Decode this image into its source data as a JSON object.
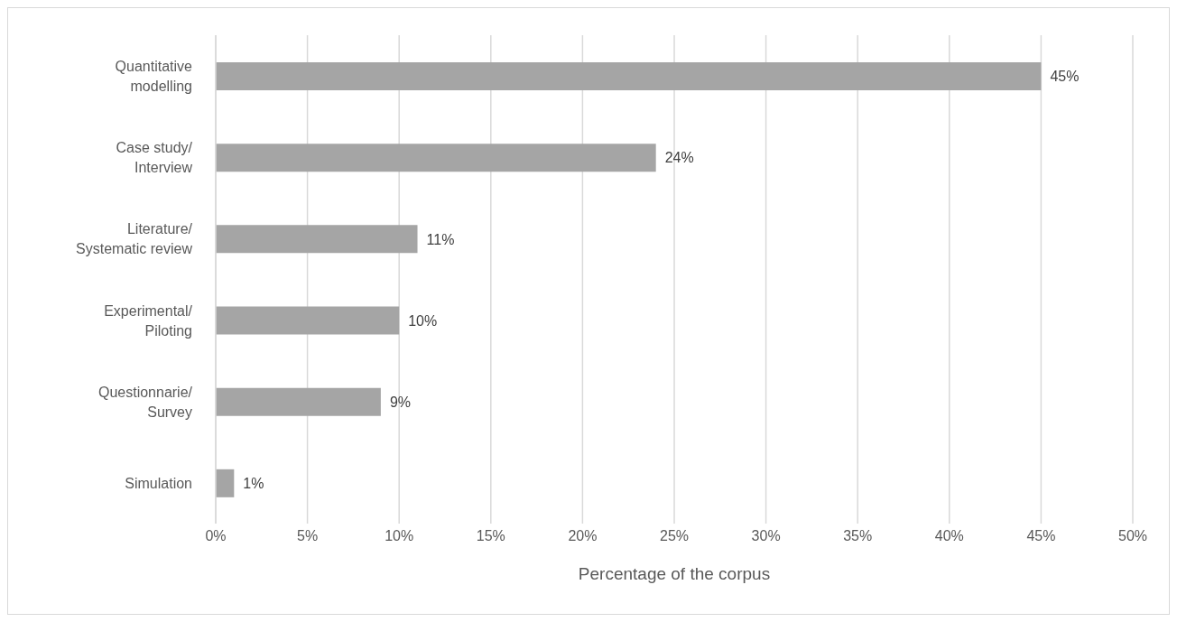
{
  "chart_data": {
    "type": "bar",
    "orientation": "horizontal",
    "xlabel": "Percentage of the corpus",
    "categories": [
      "Quantitative\nmodelling",
      "Case study/\nInterview",
      "Literature/\nSystematic review",
      "Experimental/\nPiloting",
      "Questionnarie/\nSurvey",
      "Simulation"
    ],
    "values": [
      45,
      24,
      11,
      10,
      9,
      1
    ],
    "value_labels": [
      "45%",
      "24%",
      "11%",
      "10%",
      "9%",
      "1%"
    ],
    "color": "#a5a5a5",
    "xlim": [
      0,
      50
    ],
    "xticks": [
      {
        "value": 0,
        "label": "0%"
      },
      {
        "value": 5,
        "label": "5%"
      },
      {
        "value": 10,
        "label": "10%"
      },
      {
        "value": 15,
        "label": "15%"
      },
      {
        "value": 20,
        "label": "20%"
      },
      {
        "value": 25,
        "label": "25%"
      },
      {
        "value": 30,
        "label": "30%"
      },
      {
        "value": 35,
        "label": "35%"
      },
      {
        "value": 40,
        "label": "40%"
      },
      {
        "value": 45,
        "label": "45%"
      },
      {
        "value": 50,
        "label": "50%"
      }
    ],
    "grid": "x",
    "legend": false
  }
}
